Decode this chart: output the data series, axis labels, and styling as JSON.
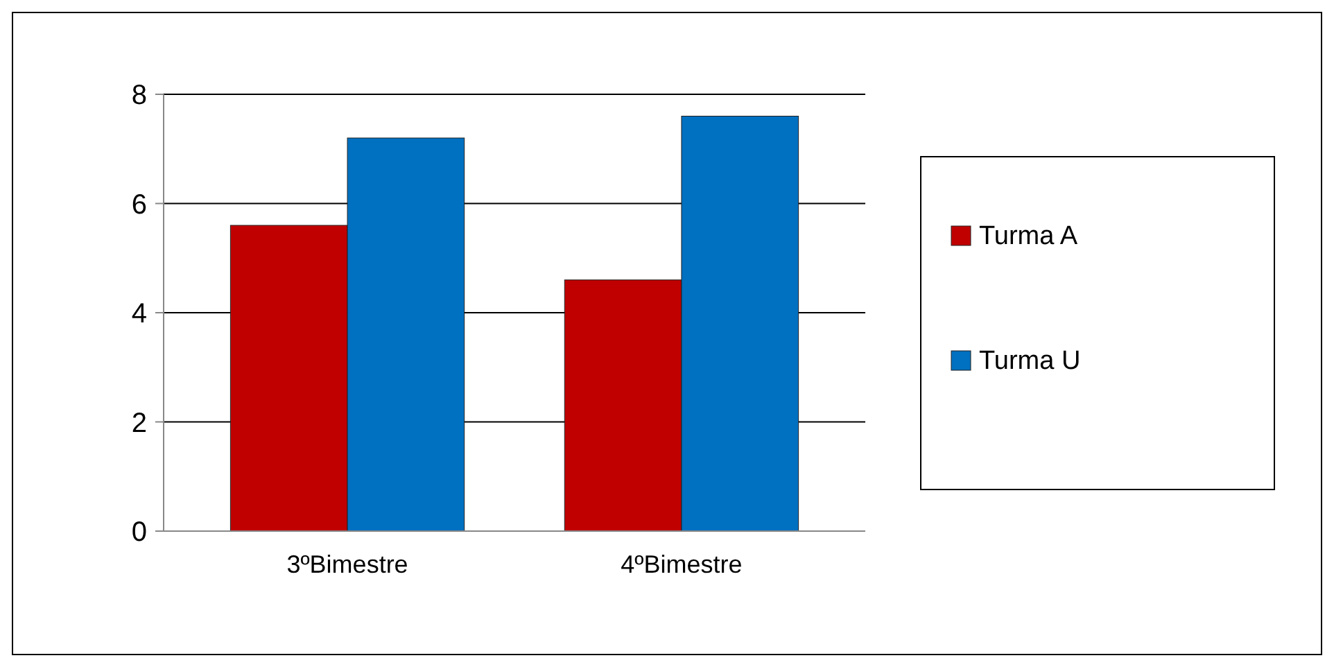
{
  "chart_data": {
    "type": "bar",
    "categories": [
      "3ºBimestre",
      "4ºBimestre"
    ],
    "series": [
      {
        "name": "Turma A",
        "color": "#c00000",
        "values": [
          5.6,
          4.6
        ]
      },
      {
        "name": "Turma U",
        "color": "#0070c0",
        "values": [
          7.2,
          7.6
        ]
      }
    ],
    "ylim": [
      0,
      8
    ],
    "yticks": [
      0,
      2,
      4,
      6,
      8
    ],
    "grid": "y",
    "legend": "right"
  }
}
